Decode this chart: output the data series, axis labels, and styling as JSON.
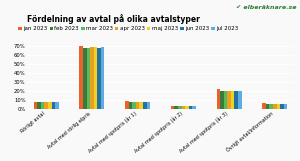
{
  "title": "Fördelning av avtal på olika avtalstyper",
  "series": [
    "jan 2023",
    "feb 2023",
    "mar 2023",
    "apr 2023",
    "maj 2023",
    "jun 2023",
    "jul 2023"
  ],
  "colors": [
    "#E8622A",
    "#3B7A3B",
    "#5CB85C",
    "#E8A020",
    "#F0D020",
    "#2471A3",
    "#5DADE2"
  ],
  "categories": [
    "Rörligt avtal",
    "Avtal med rörlig elpris",
    "Avtal med spotpris (år 1)",
    "Avtal med spotpris (år 2)",
    "Avtal med spotpris (år 3)",
    "Övrigt avtal/information"
  ],
  "values": [
    [
      8.0,
      8.0,
      8.0,
      8.0,
      8.0,
      8.0,
      8.0
    ],
    [
      70.5,
      68.0,
      68.5,
      69.5,
      69.5,
      68.0,
      69.5
    ],
    [
      9.0,
      8.5,
      8.5,
      8.5,
      8.5,
      8.0,
      8.5
    ],
    [
      4.0,
      4.0,
      4.0,
      4.0,
      4.0,
      3.5,
      4.0
    ],
    [
      23.0,
      21.0,
      21.0,
      20.5,
      20.5,
      20.5,
      20.0
    ],
    [
      7.0,
      6.5,
      6.5,
      6.5,
      6.5,
      6.5,
      6.5
    ]
  ],
  "ylim": [
    0,
    75
  ],
  "yticks": [
    0,
    10,
    20,
    30,
    40,
    50,
    60,
    70
  ],
  "ytick_labels": [
    "0%",
    "10%",
    "20%",
    "30%",
    "40%",
    "50%",
    "60%",
    "70%"
  ],
  "background_color": "#f9f9f9",
  "logo_text": "elberäknare.se",
  "title_fontsize": 5.5,
  "legend_fontsize": 4.0,
  "tick_fontsize": 3.8,
  "xlabel_fontsize": 3.5
}
